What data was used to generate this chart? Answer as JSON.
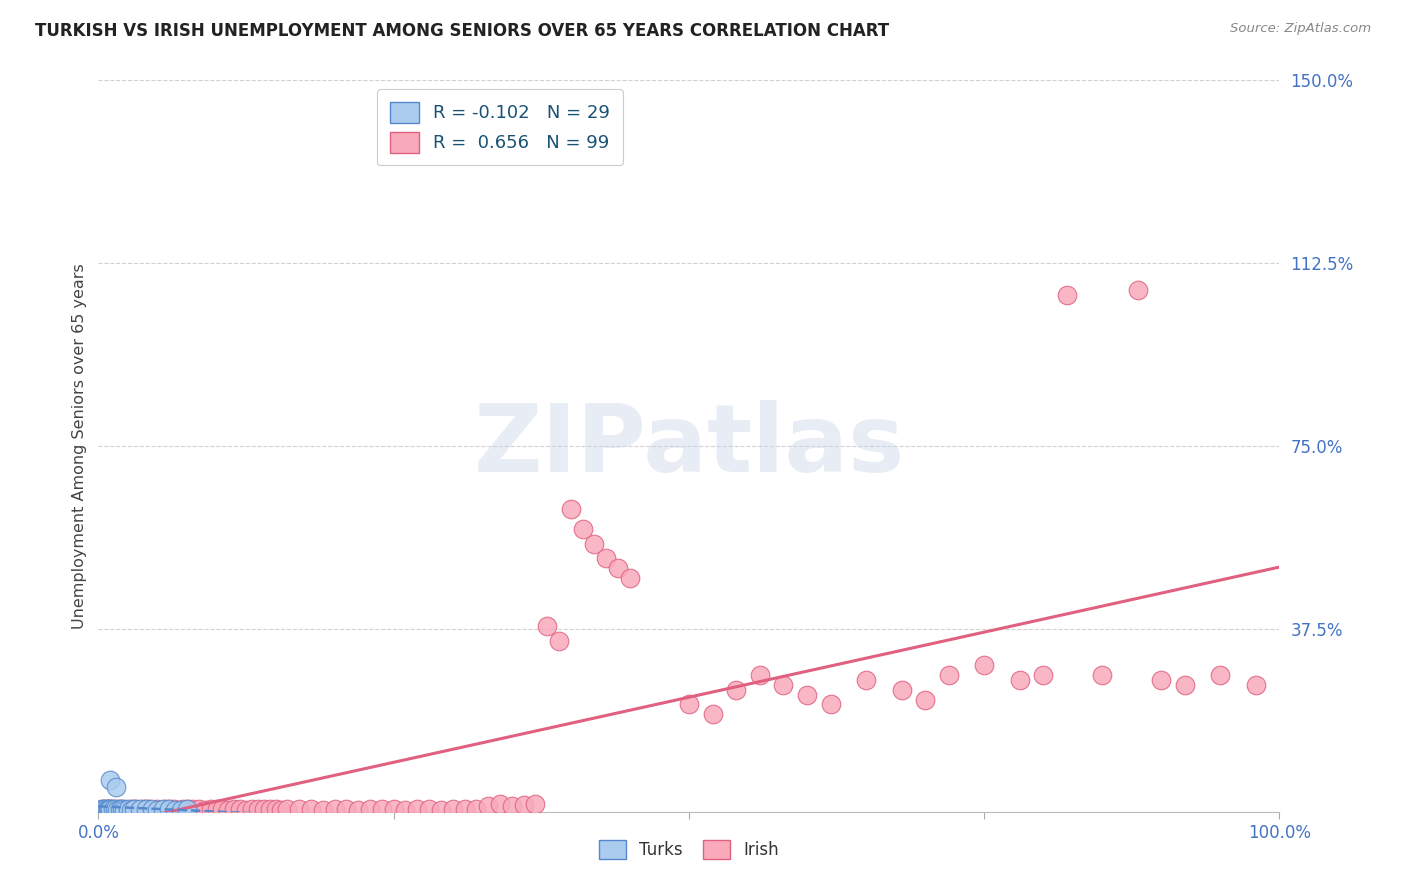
{
  "title": "TURKISH VS IRISH UNEMPLOYMENT AMONG SENIORS OVER 65 YEARS CORRELATION CHART",
  "source": "Source: ZipAtlas.com",
  "ylabel": "Unemployment Among Seniors over 65 years",
  "watermark": "ZIPatlas",
  "turks_R": -0.102,
  "turks_N": 29,
  "irish_R": 0.656,
  "irish_N": 99,
  "xlim": [
    0.0,
    1.0
  ],
  "ylim": [
    0.0,
    1.5
  ],
  "xtick_positions": [
    0.0,
    0.25,
    0.5,
    0.75,
    1.0
  ],
  "xticklabels": [
    "0.0%",
    "",
    "",
    "",
    "100.0%"
  ],
  "ytick_positions": [
    0.0,
    0.375,
    0.75,
    1.125,
    1.5
  ],
  "yticklabels": [
    "",
    "37.5%",
    "75.0%",
    "112.5%",
    "150.0%"
  ],
  "grid_color": "#cccccc",
  "title_color": "#222222",
  "axis_label_color": "#444444",
  "tick_color": "#4472c4",
  "turks_face_color": "#aaccee",
  "turks_edge_color": "#5588cc",
  "turks_line_color": "#5588cc",
  "irish_face_color": "#f8aabb",
  "irish_edge_color": "#e06080",
  "irish_line_color": "#e06080",
  "legend_turks_label": "Turks",
  "legend_irish_label": "Irish",
  "bg_color": "#ffffff",
  "irish_x": [
    0.002,
    0.003,
    0.004,
    0.005,
    0.006,
    0.007,
    0.008,
    0.009,
    0.01,
    0.012,
    0.014,
    0.016,
    0.018,
    0.02,
    0.022,
    0.025,
    0.028,
    0.03,
    0.032,
    0.035,
    0.038,
    0.04,
    0.043,
    0.046,
    0.05,
    0.053,
    0.056,
    0.06,
    0.064,
    0.068,
    0.072,
    0.076,
    0.08,
    0.085,
    0.09,
    0.095,
    0.1,
    0.105,
    0.11,
    0.115,
    0.12,
    0.125,
    0.13,
    0.135,
    0.14,
    0.145,
    0.15,
    0.155,
    0.16,
    0.17,
    0.18,
    0.19,
    0.2,
    0.21,
    0.22,
    0.23,
    0.24,
    0.25,
    0.26,
    0.27,
    0.28,
    0.29,
    0.3,
    0.31,
    0.32,
    0.33,
    0.34,
    0.35,
    0.36,
    0.37,
    0.38,
    0.39,
    0.4,
    0.41,
    0.42,
    0.43,
    0.44,
    0.45,
    0.5,
    0.52,
    0.54,
    0.56,
    0.58,
    0.6,
    0.62,
    0.65,
    0.68,
    0.7,
    0.72,
    0.75,
    0.78,
    0.8,
    0.82,
    0.85,
    0.88,
    0.9,
    0.92,
    0.95,
    0.98
  ],
  "irish_y": [
    0.004,
    0.005,
    0.003,
    0.006,
    0.004,
    0.005,
    0.006,
    0.004,
    0.005,
    0.005,
    0.004,
    0.005,
    0.005,
    0.004,
    0.005,
    0.004,
    0.005,
    0.006,
    0.005,
    0.004,
    0.005,
    0.006,
    0.005,
    0.004,
    0.005,
    0.004,
    0.005,
    0.006,
    0.005,
    0.004,
    0.005,
    0.005,
    0.006,
    0.005,
    0.004,
    0.005,
    0.006,
    0.005,
    0.004,
    0.005,
    0.005,
    0.004,
    0.005,
    0.006,
    0.005,
    0.006,
    0.005,
    0.004,
    0.005,
    0.005,
    0.005,
    0.004,
    0.006,
    0.005,
    0.004,
    0.005,
    0.006,
    0.005,
    0.004,
    0.005,
    0.005,
    0.004,
    0.005,
    0.006,
    0.005,
    0.012,
    0.015,
    0.012,
    0.014,
    0.016,
    0.38,
    0.35,
    0.62,
    0.58,
    0.55,
    0.52,
    0.5,
    0.48,
    0.22,
    0.2,
    0.25,
    0.28,
    0.26,
    0.24,
    0.22,
    0.27,
    0.25,
    0.23,
    0.28,
    0.3,
    0.27,
    0.28,
    1.06,
    0.28,
    1.07,
    0.27,
    0.26,
    0.28,
    0.26
  ],
  "turks_x": [
    0.002,
    0.003,
    0.004,
    0.005,
    0.006,
    0.007,
    0.008,
    0.009,
    0.01,
    0.012,
    0.014,
    0.016,
    0.018,
    0.02,
    0.022,
    0.025,
    0.028,
    0.03,
    0.035,
    0.04,
    0.045,
    0.05,
    0.055,
    0.06,
    0.065,
    0.07,
    0.075,
    0.01,
    0.015
  ],
  "turks_y": [
    0.004,
    0.005,
    0.004,
    0.005,
    0.004,
    0.005,
    0.004,
    0.005,
    0.005,
    0.005,
    0.005,
    0.004,
    0.005,
    0.005,
    0.004,
    0.005,
    0.004,
    0.005,
    0.005,
    0.005,
    0.005,
    0.004,
    0.005,
    0.005,
    0.004,
    0.004,
    0.005,
    0.065,
    0.05
  ]
}
